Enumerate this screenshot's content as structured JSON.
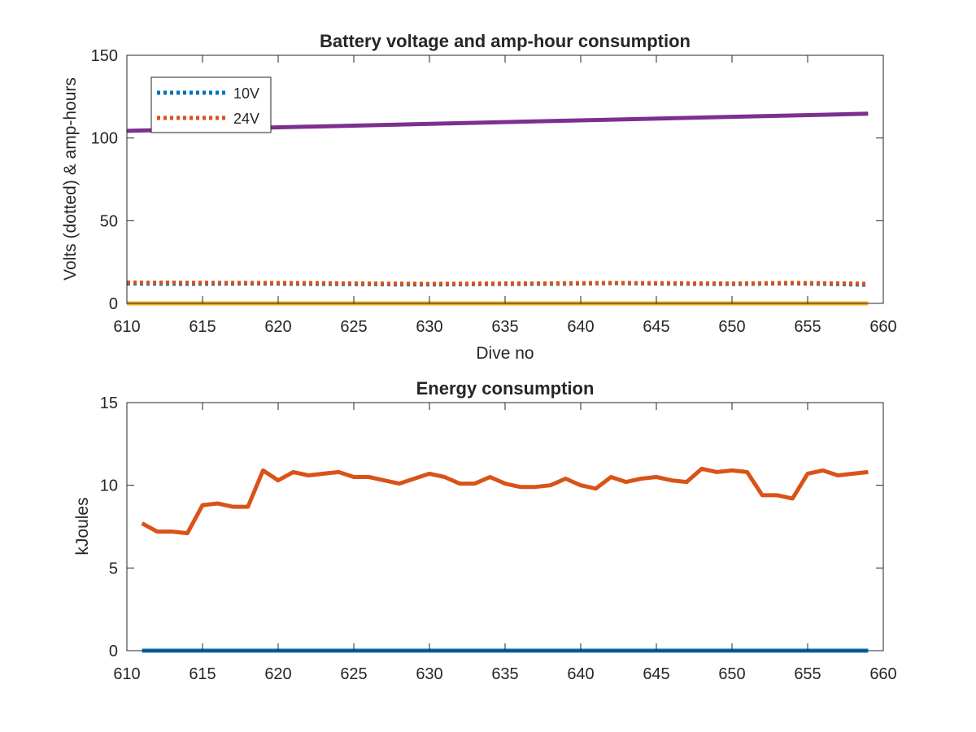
{
  "chart_data": [
    {
      "type": "line",
      "title": "Battery voltage and amp-hour consumption",
      "xlabel": "Dive no",
      "ylabel": "Volts (dotted) & amp-hours",
      "xlim": [
        610,
        660
      ],
      "ylim": [
        0,
        150
      ],
      "xticks": [
        610,
        615,
        620,
        625,
        630,
        635,
        640,
        645,
        650,
        655,
        660
      ],
      "yticks": [
        0,
        50,
        100,
        150
      ],
      "grid": false,
      "legend": {
        "placement": "top-left",
        "entries": [
          "10V",
          "24V"
        ]
      },
      "series": [
        {
          "name": "10V",
          "style": "dotted",
          "color": "#0072BD",
          "x": [
            610,
            614,
            618,
            622,
            626,
            630,
            634,
            638,
            642,
            646,
            650,
            654,
            658,
            659
          ],
          "y": [
            12,
            11.8,
            12,
            11.8,
            11.6,
            11.4,
            11.7,
            11.8,
            12.2,
            11.9,
            11.7,
            12.1,
            11.5,
            11.2
          ]
        },
        {
          "name": "24V",
          "style": "dotted",
          "color": "#D95319",
          "x": [
            610,
            614,
            618,
            622,
            626,
            630,
            634,
            638,
            642,
            646,
            650,
            654,
            658,
            659
          ],
          "y": [
            12.6,
            12.5,
            12.4,
            12.3,
            12.0,
            11.8,
            12.0,
            12.1,
            12.4,
            12.2,
            12.0,
            12.4,
            12.0,
            11.8
          ]
        },
        {
          "style": "solid",
          "color": "#EDB120",
          "x": [
            610,
            659
          ],
          "y": [
            0,
            0
          ]
        },
        {
          "style": "solid",
          "color": "#7E2F8E",
          "x": [
            610,
            659
          ],
          "y": [
            104.3,
            114.7
          ]
        }
      ]
    },
    {
      "type": "line",
      "title": "Energy consumption",
      "xlabel": "",
      "ylabel": "kJoules",
      "xlim": [
        610,
        660
      ],
      "ylim": [
        0,
        15
      ],
      "xticks": [
        610,
        615,
        620,
        625,
        630,
        635,
        640,
        645,
        650,
        655,
        660
      ],
      "yticks": [
        0,
        5,
        10,
        15
      ],
      "grid": false,
      "series": [
        {
          "style": "solid",
          "color": "#0072BD",
          "x": [
            611,
            659
          ],
          "y": [
            0,
            0
          ]
        },
        {
          "style": "solid",
          "color": "#D95319",
          "x": [
            611,
            612,
            613,
            614,
            615,
            616,
            617,
            618,
            619,
            620,
            621,
            622,
            623,
            624,
            625,
            626,
            627,
            628,
            629,
            630,
            631,
            632,
            633,
            634,
            635,
            636,
            637,
            638,
            639,
            640,
            641,
            642,
            643,
            644,
            645,
            646,
            647,
            648,
            649,
            650,
            651,
            652,
            653,
            654,
            655,
            656,
            657,
            658,
            659
          ],
          "y": [
            7.7,
            7.2,
            7.2,
            7.1,
            8.8,
            8.9,
            8.7,
            8.7,
            10.9,
            10.3,
            10.8,
            10.6,
            10.7,
            10.8,
            10.5,
            10.5,
            10.3,
            10.1,
            10.4,
            10.7,
            10.5,
            10.1,
            10.1,
            10.5,
            10.1,
            9.9,
            9.9,
            10.0,
            10.4,
            10.0,
            9.8,
            10.5,
            10.2,
            10.4,
            10.5,
            10.3,
            10.2,
            11.0,
            10.8,
            10.9,
            10.8,
            9.4,
            9.4,
            9.2,
            10.7,
            10.9,
            10.6,
            10.7,
            10.8
          ]
        }
      ]
    }
  ]
}
